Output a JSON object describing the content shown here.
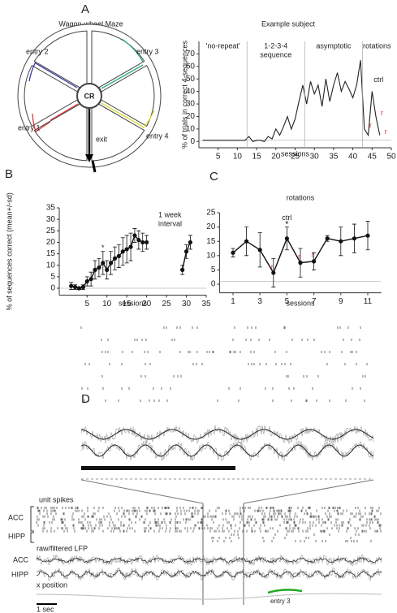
{
  "panel_labels": [
    "A",
    "B",
    "C",
    "D"
  ],
  "maze": {
    "title": "Wagon-wheel Maze",
    "hub": "CR",
    "exit": "exit",
    "entries": [
      "entry 1",
      "entry 2",
      "entry 3",
      "entry 4"
    ]
  },
  "chart_data": [
    {
      "type": "line",
      "title": "Example subject",
      "x_label": "sessions",
      "y_label": "% of trials in correct 4-sequences",
      "x": [
        1,
        2,
        3,
        4,
        5,
        6,
        7,
        8,
        9,
        10,
        11,
        12,
        13,
        14,
        15,
        16,
        17,
        18,
        19,
        20,
        21,
        22,
        23,
        24,
        25,
        26,
        27,
        28,
        29,
        30,
        31,
        32,
        33,
        34,
        35,
        36,
        37,
        38,
        39,
        40,
        41,
        42,
        43,
        44,
        45,
        46,
        47
      ],
      "values": [
        1,
        1,
        1,
        1,
        1,
        1,
        1,
        1,
        1,
        1,
        1,
        1,
        4,
        0,
        1,
        1,
        0,
        4,
        2,
        10,
        5,
        12,
        20,
        10,
        18,
        32,
        45,
        30,
        48,
        38,
        45,
        28,
        50,
        32,
        45,
        55,
        40,
        48,
        42,
        35,
        45,
        65,
        10,
        5,
        40,
        20,
        5
      ],
      "color": "#222",
      "xlim": [
        0,
        50
      ],
      "xticks": [
        5,
        10,
        15,
        20,
        25,
        30,
        35,
        40,
        45,
        50
      ],
      "ylim": [
        -5,
        80
      ],
      "yticks": [
        0,
        10,
        20,
        30,
        40,
        50,
        60,
        70
      ],
      "reference_line": 1,
      "dividers": [
        12.5,
        27.5,
        42.5
      ],
      "phases": [
        [
          "'no-repeat'"
        ],
        [
          "1-2-3-4",
          "sequence"
        ],
        [
          "asymptotic"
        ],
        [
          "rotations"
        ]
      ],
      "ctrl_label": "ctrl",
      "ctrl_session": 45,
      "rotation_marker": "r",
      "rotation_sessions": [
        43,
        46,
        47
      ]
    },
    {
      "type": "errorbar",
      "x_label": "sessions",
      "y_label": "% of sequences correct (mean+/-sd)",
      "x": [
        1,
        2,
        3,
        4,
        5,
        6,
        7,
        8,
        9,
        10,
        11,
        12,
        13,
        14,
        15,
        16,
        17,
        18,
        19,
        20,
        29,
        30,
        31
      ],
      "values": [
        1,
        0.5,
        0,
        0.5,
        3,
        4,
        8,
        9,
        11,
        8,
        11,
        13,
        14,
        16,
        17,
        18,
        23,
        21,
        20,
        20,
        8,
        16,
        20
      ],
      "errors": [
        1.5,
        1,
        0.5,
        1,
        2,
        3,
        4,
        4,
        5,
        4,
        5,
        5,
        5,
        6,
        6,
        6,
        3,
        4,
        4,
        3,
        2,
        3,
        3
      ],
      "color": "#111",
      "xlim": [
        -2,
        35
      ],
      "xticks": [
        5,
        10,
        15,
        20,
        25,
        30,
        35
      ],
      "ylim": [
        -3,
        35
      ],
      "yticks": [
        0,
        5,
        10,
        15,
        20,
        25,
        30,
        35
      ],
      "reference_line": 0,
      "star": "*",
      "star_session": 9,
      "annotation": [
        "1 week",
        "interval"
      ]
    },
    {
      "type": "errorbar",
      "title": "rotations",
      "x_label": "sessions",
      "x": [
        1,
        2,
        3,
        4,
        5,
        6,
        7,
        8,
        9,
        10,
        11
      ],
      "values": [
        11,
        15,
        12,
        4,
        16,
        7.5,
        8,
        16,
        15,
        16,
        17
      ],
      "errors": [
        1.5,
        5,
        6,
        5,
        4,
        5,
        3,
        1,
        5,
        5,
        5
      ],
      "color": "#111",
      "xlim": [
        0,
        12
      ],
      "xticks": [
        1,
        3,
        5,
        7,
        9,
        11
      ],
      "ylim": [
        -3,
        25
      ],
      "yticks": [
        0,
        5,
        10,
        15,
        20,
        25
      ],
      "reference_line": 1,
      "star": "*",
      "ctrl_label": "ctrl",
      "ctrl_session": 5,
      "rotation_marker": "r",
      "rotation_sessions": [
        4,
        6,
        7
      ]
    }
  ],
  "recording": {
    "spikes_label": "unit spikes",
    "regions": [
      "ACC",
      "HIPP"
    ],
    "lfp_label": "raw/filtered LFP",
    "lfp_regions": [
      "ACC",
      "HIPP"
    ],
    "position_label": "x position",
    "entry_label": "entry 3",
    "scale_label": "1 sec"
  }
}
